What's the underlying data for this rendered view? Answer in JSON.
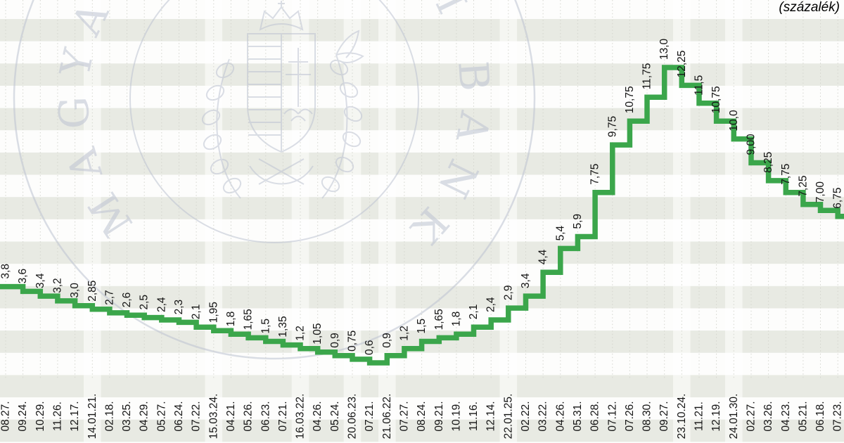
{
  "header": {
    "unit_label": "(százalék)"
  },
  "watermark": {
    "ring_text": "MAGYAR NEMZETI BANK"
  },
  "chart_data": {
    "type": "line",
    "line_style": "step-after",
    "title": "",
    "unit_label": "(százalék)",
    "xlabel": "",
    "ylabel": "(százalék)",
    "ylim": [
      0,
      15.8
    ],
    "grid": "vertical-dotted",
    "legend_position": "none",
    "categories": [
      "08.27.",
      "09.24.",
      "10.29.",
      "11.26.",
      "12.17.",
      "14.01.21.",
      "02.18.",
      "03.25.",
      "04.29.",
      "05.27.",
      "06.24.",
      "07.22.",
      "15.03.24.",
      "04.21.",
      "05.26.",
      "06.23.",
      "07.21.",
      "16.03.22.",
      "04.26.",
      "05.24.",
      "20.06.23.",
      "07.21.",
      "21.06.22.",
      "07.27.",
      "08.24.",
      "09.21.",
      "10.19.",
      "11.16.",
      "12.14.",
      "22.01.25.",
      "02.22.",
      "03.22.",
      "04.26.",
      "05.31.",
      "06.28.",
      "07.12.",
      "07.26.",
      "08.30.",
      "09.27.",
      "23.10.24.",
      "11.21.",
      "12.19.",
      "24.01.30.",
      "02.27.",
      "03.26.",
      "04.23.",
      "05.21.",
      "06.18.",
      "07.23."
    ],
    "values": [
      3.8,
      3.6,
      3.4,
      3.2,
      3.0,
      2.85,
      2.7,
      2.6,
      2.5,
      2.4,
      2.3,
      2.1,
      1.95,
      1.8,
      1.65,
      1.5,
      1.35,
      1.2,
      1.05,
      0.9,
      0.75,
      0.6,
      0.9,
      1.2,
      1.5,
      1.65,
      1.8,
      2.1,
      2.4,
      2.9,
      3.4,
      4.4,
      5.4,
      5.9,
      7.75,
      9.75,
      10.75,
      11.75,
      13.0,
      12.25,
      11.5,
      10.75,
      10.0,
      9.0,
      8.25,
      7.75,
      7.25,
      7.0,
      6.75
    ],
    "point_labels": [
      "3,8",
      "3,6",
      "3,4",
      "3,2",
      "3,0",
      "2,85",
      "2,7",
      "2,6",
      "2,5",
      "2,4",
      "2,3",
      "2,1",
      "1,95",
      "1,8",
      "1,65",
      "1,5",
      "1,35",
      "1,2",
      "1,05",
      "0,9",
      "0,75",
      "0,6",
      "0,9",
      "1,2",
      "1,5",
      "1,65",
      "1,8",
      "2,1",
      "2,4",
      "2,9",
      "3,4",
      "4,4",
      "5,4",
      "5,9",
      "7,75",
      "9,75",
      "10,75",
      "11,75",
      "13,0",
      "12,25",
      "11,5",
      "10,75",
      "10,0",
      "9,00",
      "8,25",
      "7,75",
      "7,25",
      "7,00",
      "6,75"
    ],
    "year_start_indices": [
      5,
      12,
      17,
      20,
      22,
      29,
      39,
      42
    ],
    "colors": {
      "line": "#3BA64B",
      "stripe": "#e8eae3",
      "gridline": "#d4d5ce",
      "label_text": "#141414",
      "watermark": "#bdc3d2",
      "year_band": "rgba(255,255,255,0.55)"
    }
  }
}
